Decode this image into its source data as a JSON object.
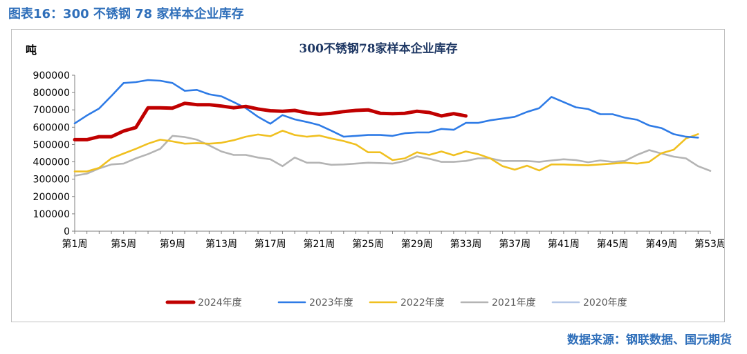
{
  "figure_title": "图表16：300 不锈钢  78 家样本企业库存",
  "source": "数据来源：钢联数据、国元期货",
  "chart_data": {
    "type": "line",
    "title": "300不锈钢78家样本企业库存",
    "ylabel": "吨",
    "xlabel": "",
    "ylim": [
      0,
      900000
    ],
    "yticks": [
      0,
      100000,
      200000,
      300000,
      400000,
      500000,
      600000,
      700000,
      800000,
      900000
    ],
    "x_tick_labels": [
      "第1周",
      "第5周",
      "第9周",
      "第13周",
      "第17周",
      "第21周",
      "第25周",
      "第29周",
      "第33周",
      "第37周",
      "第41周",
      "第45周",
      "第49周",
      "第53周"
    ],
    "x_tick_weeks": [
      1,
      5,
      9,
      13,
      17,
      21,
      25,
      29,
      33,
      37,
      41,
      45,
      49,
      53
    ],
    "legend_position": "bottom",
    "grid": false,
    "series": [
      {
        "name": "2024年度",
        "color": "#c00000",
        "values": [
          528000,
          528000,
          545000,
          545000,
          578000,
          598000,
          712000,
          712000,
          710000,
          738000,
          730000,
          730000,
          722000,
          712000,
          720000,
          705000,
          695000,
          692000,
          697000,
          682000,
          675000,
          680000,
          690000,
          697000,
          700000,
          680000,
          678000,
          680000,
          692000,
          685000,
          665000,
          678000,
          665000
        ]
      },
      {
        "name": "2023年度",
        "color": "#2e7be6",
        "values": [
          622000,
          668000,
          708000,
          780000,
          855000,
          860000,
          872000,
          868000,
          855000,
          810000,
          815000,
          790000,
          778000,
          745000,
          710000,
          660000,
          620000,
          670000,
          645000,
          630000,
          612000,
          580000,
          545000,
          550000,
          555000,
          555000,
          550000,
          565000,
          570000,
          570000,
          590000,
          585000,
          625000,
          625000,
          640000,
          650000,
          660000,
          688000,
          710000,
          775000,
          745000,
          715000,
          705000,
          675000,
          675000,
          655000,
          643000,
          610000,
          595000,
          560000,
          545000,
          540000
        ]
      },
      {
        "name": "2022年度",
        "color": "#f0c020",
        "values": [
          345000,
          345000,
          365000,
          420000,
          448000,
          475000,
          505000,
          528000,
          518000,
          505000,
          508000,
          505000,
          510000,
          525000,
          545000,
          558000,
          548000,
          580000,
          555000,
          545000,
          552000,
          535000,
          520000,
          500000,
          455000,
          455000,
          410000,
          420000,
          455000,
          440000,
          460000,
          438000,
          460000,
          445000,
          420000,
          375000,
          355000,
          378000,
          350000,
          385000,
          385000,
          382000,
          380000,
          385000,
          390000,
          395000,
          390000,
          400000,
          450000,
          470000,
          535000,
          560000
        ]
      },
      {
        "name": "2021年度",
        "color": "#b4b4b4",
        "values": [
          320000,
          332000,
          362000,
          385000,
          390000,
          420000,
          445000,
          475000,
          550000,
          543000,
          528000,
          495000,
          460000,
          440000,
          440000,
          425000,
          415000,
          375000,
          425000,
          395000,
          395000,
          383000,
          385000,
          390000,
          395000,
          393000,
          390000,
          405000,
          432000,
          418000,
          400000,
          400000,
          405000,
          420000,
          420000,
          405000,
          405000,
          405000,
          400000,
          408000,
          415000,
          410000,
          398000,
          408000,
          400000,
          405000,
          440000,
          468000,
          448000,
          430000,
          420000,
          375000,
          348000
        ]
      },
      {
        "name": "2020年度",
        "color": "#b4c7e7",
        "values": []
      }
    ]
  }
}
